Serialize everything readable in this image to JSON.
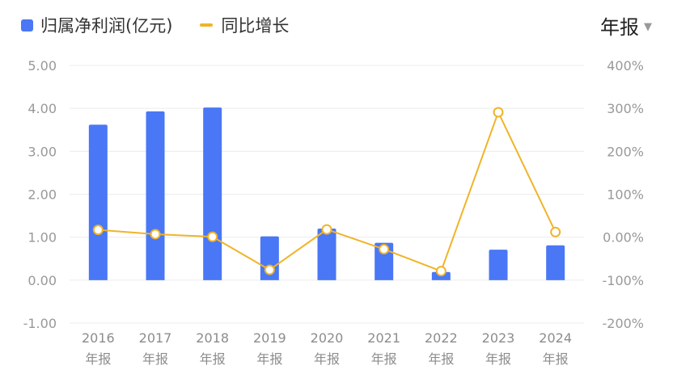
{
  "legend": {
    "bar_label": "归属净利润(亿元)",
    "line_label": "同比增长"
  },
  "period_select": {
    "label": "年报",
    "icon": "caret-down-icon"
  },
  "colors": {
    "bar": "#4a77f5",
    "line": "#f0b428",
    "grid": "#ececec",
    "axis_text": "#999999"
  },
  "chart_data": {
    "type": "bar",
    "categories": [
      "2016\n年报",
      "2017\n年报",
      "2018\n年报",
      "2019\n年报",
      "2020\n年报",
      "2021\n年报",
      "2022\n年报",
      "2023\n年报",
      "2024\n年报"
    ],
    "category_years": [
      "2016",
      "2017",
      "2018",
      "2019",
      "2020",
      "2021",
      "2022",
      "2023",
      "2024"
    ],
    "category_period": "年报",
    "series": [
      {
        "name": "归属净利润(亿元)",
        "type": "bar",
        "axis": "left",
        "values": [
          3.62,
          3.93,
          4.02,
          1.02,
          1.2,
          0.87,
          0.19,
          0.71,
          0.81
        ]
      },
      {
        "name": "同比增长",
        "type": "line",
        "axis": "right",
        "values": [
          17,
          7,
          1,
          -76,
          18,
          -28,
          -79,
          291,
          12
        ]
      }
    ],
    "y_left": {
      "ticks": [
        "5.00",
        "4.00",
        "3.00",
        "2.00",
        "1.00",
        "0.00",
        "-1.00"
      ],
      "ylim": [
        -1,
        5
      ]
    },
    "y_right": {
      "ticks": [
        "400%",
        "300%",
        "200%",
        "100%",
        "0.00%",
        "-100%",
        "-200%"
      ],
      "ylim": [
        -200,
        400
      ]
    },
    "grid": true,
    "legend_position": "top-left"
  }
}
